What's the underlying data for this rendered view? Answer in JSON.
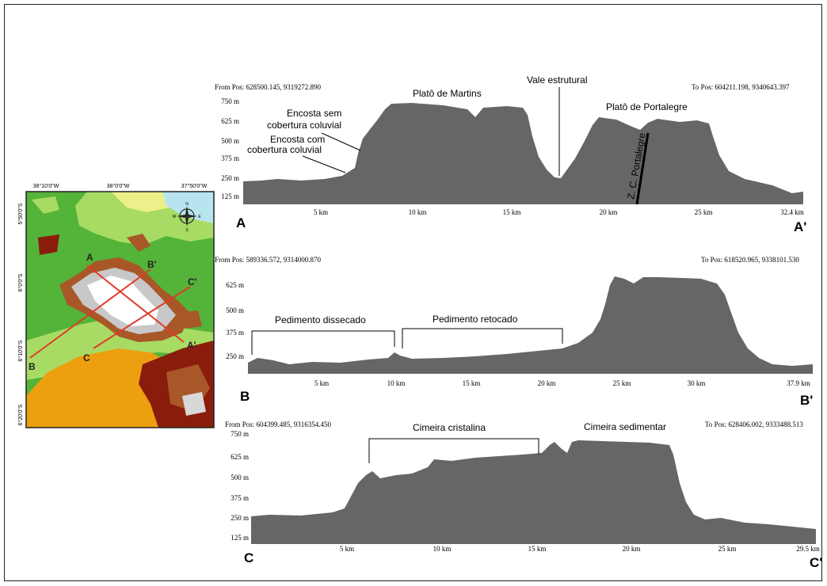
{
  "map": {
    "lon_labels": [
      "38°10'0\"W",
      "38°0'0\"W",
      "37°50'0\"W"
    ],
    "lat_labels": [
      "5°50'0\"S",
      "6°0'0\"S",
      "6°10'0\"S",
      "6°20'0\"S"
    ],
    "compass": {
      "n": "N",
      "s": "S",
      "e": "E",
      "w": "W"
    },
    "section_labels": {
      "a": "A",
      "a_prime": "A'",
      "b": "B",
      "b_prime": "B'",
      "c": "C",
      "c_prime": "C'"
    },
    "colors": {
      "low_green": "#54b339",
      "light_green": "#a8db64",
      "yellow_green": "#ecf08a",
      "orange": "#eca010",
      "dark_red": "#8a1c0c",
      "brown": "#a85828",
      "grey": "#a8a8a8",
      "white": "#ffffff",
      "water": "#b8e4f0",
      "section_line": "#e03a2a"
    }
  },
  "profiles": [
    {
      "id": "A",
      "from_pos": "From Pos: 628500.145, 9319272.890",
      "to_pos": "To Pos: 604211.198, 9340643.397",
      "start_label": "A",
      "end_label": "A'",
      "y_ticks": [
        "750 m",
        "625 m",
        "500 m",
        "375 m",
        "250 m",
        "125 m"
      ],
      "x_ticks": [
        "5 km",
        "10 km",
        "15 km",
        "20 km",
        "25 km",
        "32.4 km"
      ],
      "annotations": {
        "plato_martins": "Platô de Martins",
        "vale": "Vale estrutural",
        "plato_portalegre": "Platô de Portalegre",
        "encosta_sem_1": "Encosta sem",
        "encosta_sem_2": "cobertura coluvial",
        "encosta_com_1": "Encosta com",
        "encosta_com_2": "cobertura coluvial",
        "zc": "Z. C. Portalegre"
      }
    },
    {
      "id": "B",
      "from_pos": "From Pos: 589336.572, 9314000.870",
      "to_pos": "To Pos: 618520.965, 9338101.530",
      "start_label": "B",
      "end_label": "B'",
      "y_ticks": [
        "625 m",
        "500 m",
        "375 m",
        "250 m"
      ],
      "x_ticks": [
        "5 km",
        "10 km",
        "15 km",
        "20 km",
        "25 km",
        "30 km",
        "37.9 km"
      ],
      "annotations": {
        "ped_dissecado": "Pedimento dissecado",
        "ped_retocado": "Pedimento retocado"
      }
    },
    {
      "id": "C",
      "from_pos": "From Pos: 604399.485, 9316354.450",
      "to_pos": "To Pos: 628406.002, 9333488.513",
      "start_label": "C",
      "end_label": "C'",
      "y_ticks": [
        "750 m",
        "625 m",
        "500 m",
        "375 m",
        "250 m",
        "125 m"
      ],
      "x_ticks": [
        "5 km",
        "10 km",
        "15 km",
        "20 km",
        "25 km",
        "29.5 km"
      ],
      "annotations": {
        "cimeira_cristalina": "Cimeira cristalina",
        "cimeira_sedimentar": "Cimeira sedimentar"
      }
    }
  ],
  "profile_fill": "#666666"
}
